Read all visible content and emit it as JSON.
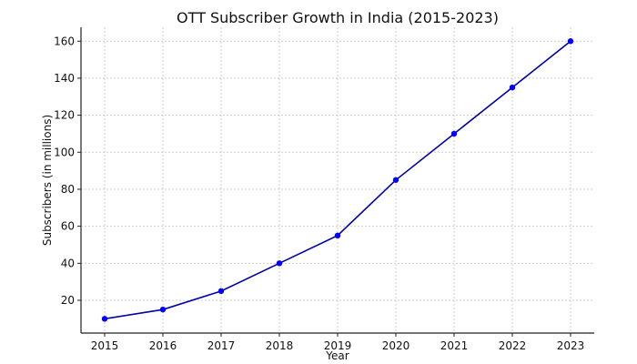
{
  "chart_data": {
    "type": "line",
    "title": "OTT Subscriber Growth in India (2015-2023)",
    "xlabel": "Year",
    "ylabel": "Subscribers (in millions)",
    "categories": [
      "2015",
      "2016",
      "2017",
      "2018",
      "2019",
      "2020",
      "2021",
      "2022",
      "2023"
    ],
    "series": [
      {
        "name": "Subscribers",
        "values": [
          10,
          15,
          25,
          40,
          55,
          85,
          110,
          135,
          160
        ],
        "line_color": "#0000aa",
        "marker_color": "#0000ff"
      }
    ],
    "yticks": [
      20,
      40,
      60,
      80,
      100,
      120,
      140,
      160
    ],
    "ylim": [
      2.3,
      167.5
    ],
    "grid": true,
    "legend": "none"
  }
}
